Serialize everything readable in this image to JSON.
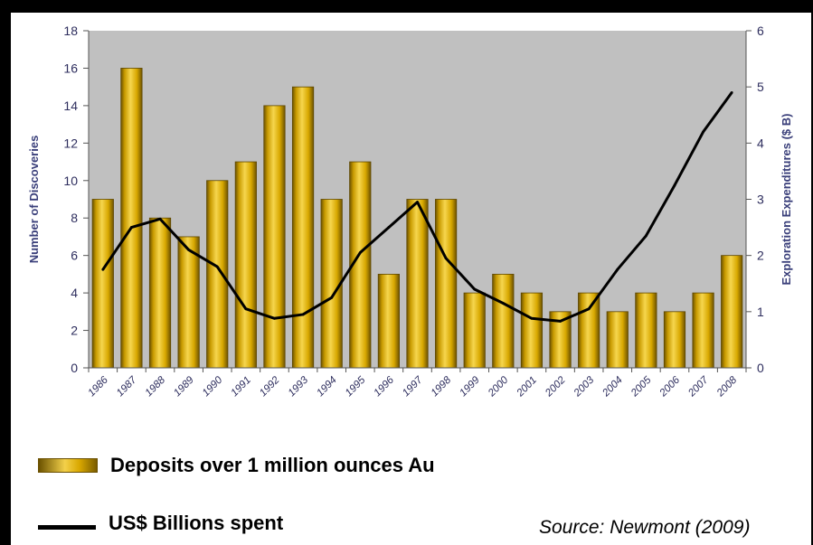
{
  "chart_data": {
    "type": "bar",
    "categories": [
      "1986",
      "1987",
      "1988",
      "1989",
      "1990",
      "1991",
      "1992",
      "1993",
      "1994",
      "1995",
      "1996",
      "1997",
      "1998",
      "1999",
      "2000",
      "2001",
      "2002",
      "2003",
      "2004",
      "2005",
      "2006",
      "2007",
      "2008"
    ],
    "series": [
      {
        "name": "Deposits over 1 million ounces Au",
        "type": "bar",
        "axis": "left",
        "values": [
          9,
          16,
          8,
          7,
          10,
          11,
          14,
          15,
          9,
          11,
          5,
          9,
          9,
          4,
          5,
          4,
          3,
          4,
          3,
          4,
          3,
          4,
          6
        ]
      },
      {
        "name": "US$ Billions spent",
        "type": "line",
        "axis": "right",
        "values": [
          1.75,
          2.5,
          2.65,
          2.1,
          1.8,
          1.05,
          0.88,
          0.95,
          1.25,
          2.05,
          2.5,
          2.95,
          1.95,
          1.4,
          1.15,
          0.88,
          0.83,
          1.05,
          1.75,
          2.35,
          3.25,
          4.2,
          4.9
        ]
      }
    ],
    "ylabel": "Number of Discoveries",
    "ylabel_right": "Exploration Expenditures ($ B)",
    "ylim": [
      0,
      18
    ],
    "ylim_right": [
      0,
      6
    ],
    "yticks": [
      "0",
      "2",
      "4",
      "6",
      "8",
      "10",
      "12",
      "14",
      "16",
      "18"
    ],
    "yticks_right": [
      "0",
      "1",
      "2",
      "3",
      "4",
      "5",
      "6"
    ],
    "grid": false,
    "plot_background": "#c0c0c0",
    "bar_color": "#e8b400",
    "line_color": "#000000"
  },
  "legend": {
    "bar_label": "Deposits over 1 million ounces Au",
    "line_label": "US$ Billions spent",
    "position": "bottom-left"
  },
  "source": "Source: Newmont (2009)"
}
